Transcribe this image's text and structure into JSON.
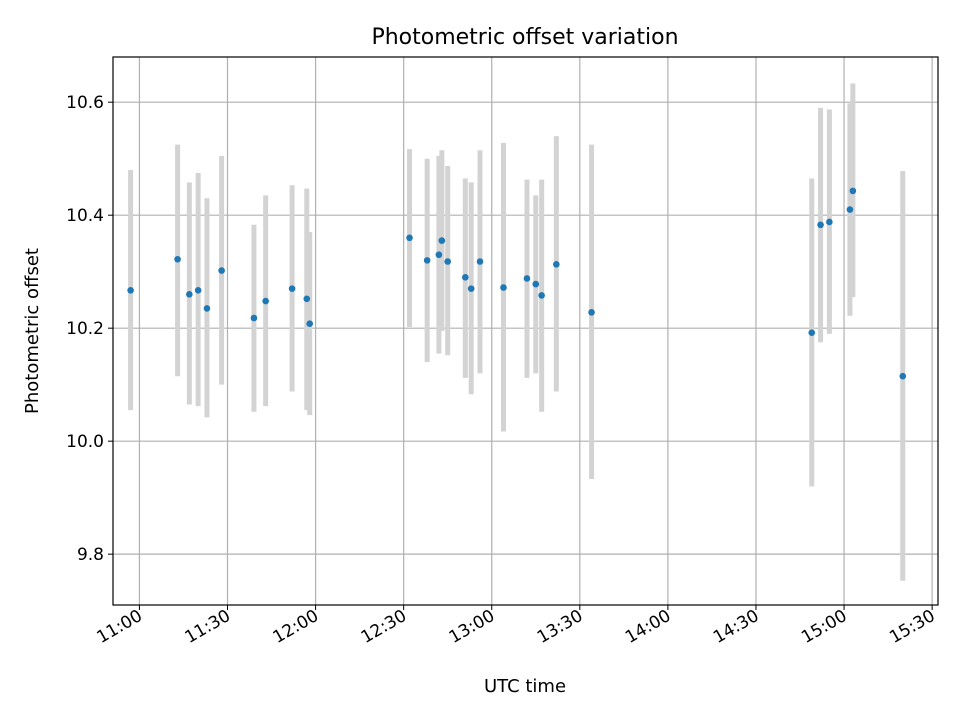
{
  "chart_data": {
    "type": "scatter",
    "title": "Photometric offset variation",
    "xlabel": "UTC time",
    "ylabel": "Photometric offset",
    "grid": true,
    "xlim": [
      "10:51",
      "15:32"
    ],
    "ylim": [
      9.71,
      10.68
    ],
    "x_ticks": [
      "11:00",
      "11:30",
      "12:00",
      "12:30",
      "13:00",
      "13:30",
      "14:00",
      "14:30",
      "15:00",
      "15:30"
    ],
    "y_ticks": [
      "9.8",
      "10.0",
      "10.2",
      "10.4",
      "10.6"
    ],
    "marker_color": "#1f77b4",
    "errorbar_color": "#d3d3d3",
    "points": [
      {
        "x": "10:57",
        "y": 10.267,
        "lo": 10.055,
        "hi": 10.48
      },
      {
        "x": "11:13",
        "y": 10.322,
        "lo": 10.115,
        "hi": 10.525
      },
      {
        "x": "11:17",
        "y": 10.26,
        "lo": 10.065,
        "hi": 10.458
      },
      {
        "x": "11:20",
        "y": 10.267,
        "lo": 10.062,
        "hi": 10.475
      },
      {
        "x": "11:23",
        "y": 10.235,
        "lo": 10.042,
        "hi": 10.43
      },
      {
        "x": "11:28",
        "y": 10.302,
        "lo": 10.1,
        "hi": 10.505
      },
      {
        "x": "11:39",
        "y": 10.218,
        "lo": 10.052,
        "hi": 10.383
      },
      {
        "x": "11:43",
        "y": 10.248,
        "lo": 10.062,
        "hi": 10.435
      },
      {
        "x": "11:52",
        "y": 10.27,
        "lo": 10.088,
        "hi": 10.453
      },
      {
        "x": "11:57",
        "y": 10.252,
        "lo": 10.055,
        "hi": 10.447
      },
      {
        "x": "11:58",
        "y": 10.208,
        "lo": 10.046,
        "hi": 10.37
      },
      {
        "x": "12:32",
        "y": 10.36,
        "lo": 10.202,
        "hi": 10.517
      },
      {
        "x": "12:38",
        "y": 10.32,
        "lo": 10.14,
        "hi": 10.5
      },
      {
        "x": "12:42",
        "y": 10.33,
        "lo": 10.155,
        "hi": 10.505
      },
      {
        "x": "12:43",
        "y": 10.355,
        "lo": 10.195,
        "hi": 10.515
      },
      {
        "x": "12:45",
        "y": 10.318,
        "lo": 10.152,
        "hi": 10.487
      },
      {
        "x": "12:51",
        "y": 10.29,
        "lo": 10.112,
        "hi": 10.465
      },
      {
        "x": "12:53",
        "y": 10.27,
        "lo": 10.083,
        "hi": 10.458
      },
      {
        "x": "12:56",
        "y": 10.318,
        "lo": 10.12,
        "hi": 10.515
      },
      {
        "x": "13:04",
        "y": 10.272,
        "lo": 10.017,
        "hi": 10.528
      },
      {
        "x": "13:12",
        "y": 10.288,
        "lo": 10.112,
        "hi": 10.463
      },
      {
        "x": "13:15",
        "y": 10.278,
        "lo": 10.12,
        "hi": 10.435
      },
      {
        "x": "13:17",
        "y": 10.258,
        "lo": 10.052,
        "hi": 10.463
      },
      {
        "x": "13:22",
        "y": 10.313,
        "lo": 10.088,
        "hi": 10.54
      },
      {
        "x": "13:34",
        "y": 10.228,
        "lo": 9.933,
        "hi": 10.525
      },
      {
        "x": "14:49",
        "y": 10.192,
        "lo": 9.92,
        "hi": 10.465
      },
      {
        "x": "14:52",
        "y": 10.383,
        "lo": 10.175,
        "hi": 10.59
      },
      {
        "x": "14:55",
        "y": 10.388,
        "lo": 10.19,
        "hi": 10.587
      },
      {
        "x": "15:02",
        "y": 10.41,
        "lo": 10.222,
        "hi": 10.598
      },
      {
        "x": "15:03",
        "y": 10.443,
        "lo": 10.255,
        "hi": 10.633
      },
      {
        "x": "15:20",
        "y": 10.115,
        "lo": 9.753,
        "hi": 10.478
      }
    ]
  }
}
